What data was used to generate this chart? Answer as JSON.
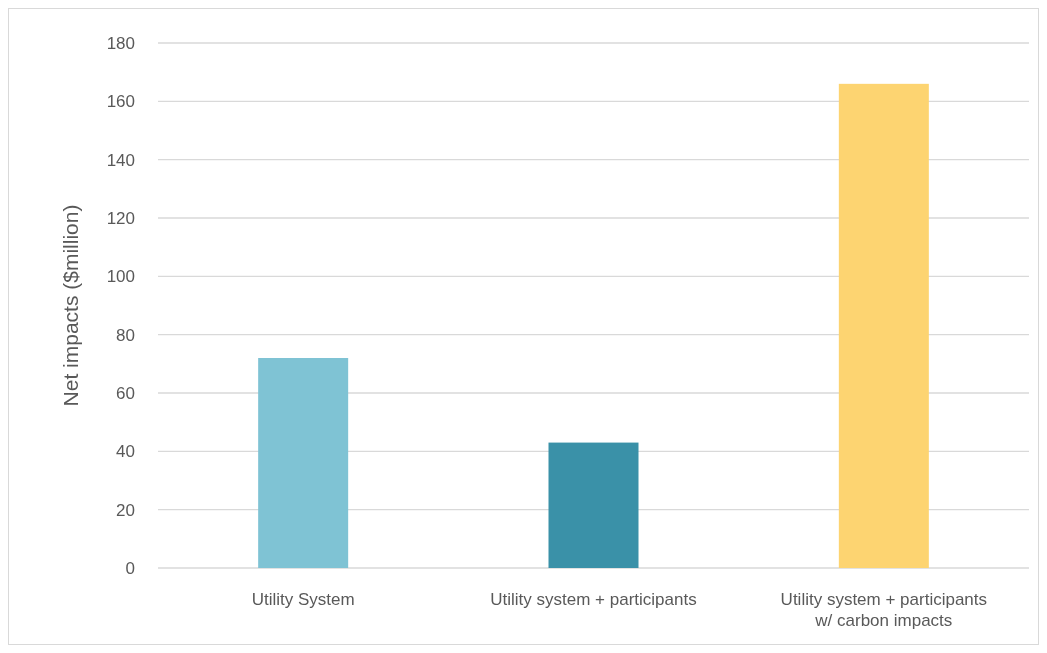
{
  "chart_data": {
    "type": "bar",
    "ylabel": "Net impacts ($million)",
    "categories": [
      "Utility System",
      "Utility system + participants",
      "Utility system + participants w/ carbon impacts"
    ],
    "values": [
      72,
      43,
      166
    ],
    "colors": [
      "#7fc3d4",
      "#3a91a8",
      "#fdd471"
    ],
    "ylim": [
      0,
      180
    ],
    "yticks": [
      0,
      20,
      40,
      60,
      80,
      100,
      120,
      140,
      160,
      180
    ],
    "grid": "y"
  }
}
